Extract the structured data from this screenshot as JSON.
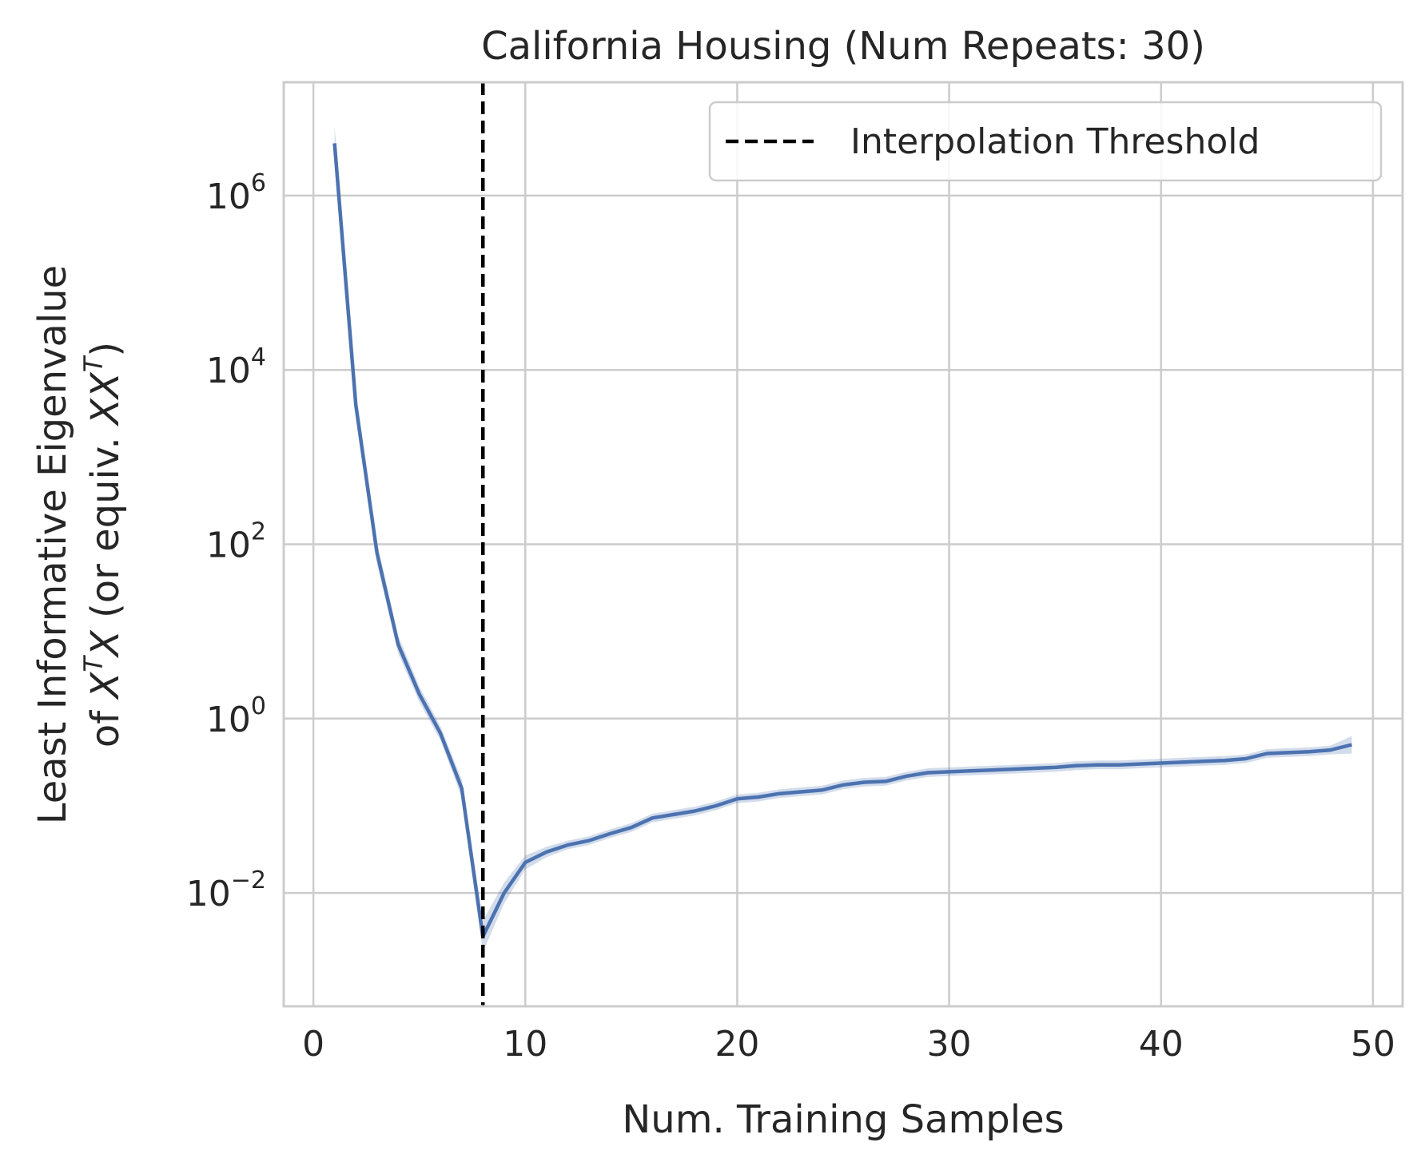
{
  "chart_data": {
    "type": "line",
    "title": "California Housing (Num Repeats: 30)",
    "xlabel": "Num. Training Samples",
    "ylabel_line1": "Least Informative Eigenvalue",
    "ylabel_line2": {
      "prefix": "of ",
      "x1": "X",
      "sup1": "T",
      "x2": "X",
      "middle": " (or equiv. ",
      "x3": "XX",
      "sup2": "T",
      "suffix": ")"
    },
    "x_ticks": [
      {
        "value": 0,
        "label": "0"
      },
      {
        "value": 10,
        "label": "10"
      },
      {
        "value": 20,
        "label": "20"
      },
      {
        "value": 30,
        "label": "30"
      },
      {
        "value": 40,
        "label": "40"
      },
      {
        "value": 50,
        "label": "50"
      }
    ],
    "y_ticks": [
      {
        "exp": 6,
        "base": "10",
        "sup": "6"
      },
      {
        "exp": 4,
        "base": "10",
        "sup": "4"
      },
      {
        "exp": 2,
        "base": "10",
        "sup": "2"
      },
      {
        "exp": 0,
        "base": "10",
        "sup": "0"
      },
      {
        "exp": -2,
        "base": "10",
        "sup": "−2"
      }
    ],
    "xlim": [
      -1.4,
      51.4
    ],
    "ylim_log10": [
      -3.3,
      7.3
    ],
    "y_scale": "log",
    "grid": true,
    "legend": {
      "position": "upper-right",
      "entries": [
        {
          "label": "Interpolation Threshold",
          "style": "dashed",
          "color": "#000000"
        }
      ]
    },
    "threshold_x": 8,
    "series": [
      {
        "color": "#4c72b0",
        "band_color": "#4c72b0",
        "x": [
          1,
          2,
          3,
          4,
          5,
          6,
          7,
          8,
          9,
          10,
          11,
          12,
          13,
          14,
          15,
          16,
          17,
          18,
          19,
          20,
          21,
          22,
          23,
          24,
          25,
          26,
          27,
          28,
          29,
          30,
          31,
          32,
          33,
          34,
          35,
          36,
          37,
          38,
          39,
          40,
          41,
          42,
          43,
          44,
          45,
          46,
          47,
          48,
          49
        ],
        "y_log10": [
          6.6,
          3.6,
          1.9,
          0.85,
          0.28,
          -0.17,
          -0.8,
          -2.5,
          -2.0,
          -1.65,
          -1.53,
          -1.45,
          -1.4,
          -1.32,
          -1.25,
          -1.14,
          -1.1,
          -1.06,
          -1.0,
          -0.92,
          -0.9,
          -0.86,
          -0.84,
          -0.82,
          -0.76,
          -0.73,
          -0.72,
          -0.66,
          -0.62,
          -0.61,
          -0.6,
          -0.59,
          -0.58,
          -0.57,
          -0.56,
          -0.54,
          -0.53,
          -0.53,
          -0.52,
          -0.51,
          -0.5,
          -0.49,
          -0.48,
          -0.46,
          -0.4,
          -0.39,
          -0.38,
          -0.36,
          -0.3
        ],
        "band_halfwidth_log10": [
          0.2,
          0.15,
          0.12,
          0.1,
          0.09,
          0.08,
          0.1,
          0.18,
          0.12,
          0.08,
          0.06,
          0.05,
          0.05,
          0.05,
          0.05,
          0.05,
          0.05,
          0.05,
          0.05,
          0.05,
          0.05,
          0.05,
          0.05,
          0.05,
          0.05,
          0.05,
          0.05,
          0.05,
          0.05,
          0.05,
          0.05,
          0.05,
          0.05,
          0.05,
          0.05,
          0.05,
          0.05,
          0.05,
          0.05,
          0.05,
          0.05,
          0.05,
          0.05,
          0.05,
          0.05,
          0.05,
          0.05,
          0.05,
          0.1
        ]
      }
    ]
  }
}
